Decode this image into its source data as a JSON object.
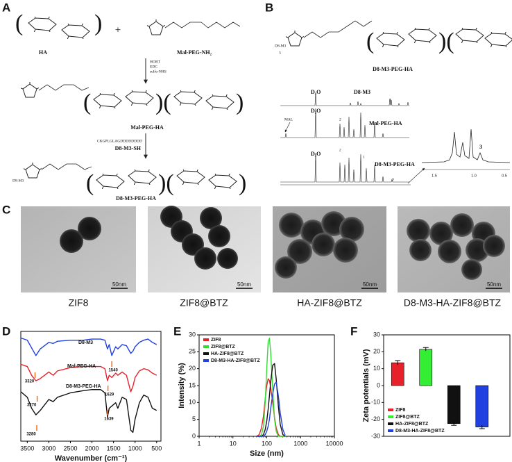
{
  "panel_labels": [
    "A",
    "B",
    "C",
    "D",
    "E",
    "F"
  ],
  "scheme_a": {
    "reactant1": "HA",
    "plus": "+",
    "reactant2": "Mal-PEG-NH₂",
    "reagents": [
      "HOBT",
      "EDC",
      "sulfo-NHS"
    ],
    "intermediate": "Mal-PEG-HA",
    "peptide_sequence": "CKGPLGLAGDDDDDDDD",
    "peptide": "D8-M3-SH",
    "product": "D8-M3-PEG-HA",
    "substituent": "D8-M3"
  },
  "scheme_b": {
    "substituent": "D8-M3",
    "repeat": "3",
    "title": "D8-M3-PEG-HA",
    "spectra": [
      {
        "solvent": "D₂O",
        "name": "D8-M3",
        "peak_labels": [
          "3"
        ]
      },
      {
        "solvent": "D₂O",
        "name": "Mal-PEG-HA",
        "marker": "MAL",
        "peak_labels": [
          "2",
          "1"
        ]
      },
      {
        "solvent": "D₂O",
        "name": "D8-M3-PEG-HA",
        "peak_labels": [
          "2",
          "1",
          "3"
        ]
      }
    ],
    "inset_label": "3",
    "inset_ticks": [
      "1.5",
      "1.0",
      "0.5"
    ]
  },
  "tem": {
    "samples": [
      "ZIF8",
      "ZIF8@BTZ",
      "HA-ZIF8@BTZ",
      "D8-M3-HA-ZIF8@BTZ"
    ],
    "scale_bar": "50nm"
  },
  "chart_data": [
    {
      "type": "line",
      "xlabel": "Wavenumber (cm⁻¹)",
      "xlim": [
        3650,
        400
      ],
      "xticks": [
        3500,
        3000,
        2500,
        2000,
        1500,
        1000,
        500
      ],
      "ylim": [
        0,
        100
      ],
      "x": [
        3650,
        3500,
        3400,
        3300,
        3200,
        3000,
        2900,
        2800,
        2500,
        2200,
        2000,
        1800,
        1700,
        1640,
        1600,
        1540,
        1450,
        1400,
        1300,
        1200,
        1100,
        1050,
        1000,
        900,
        800,
        700,
        600,
        500
      ],
      "series": [
        {
          "name": "D8-M3",
          "color": "#1f3fe0",
          "values": [
            94,
            92,
            85,
            78,
            84,
            90,
            89,
            91,
            92,
            92,
            93,
            93,
            92,
            84,
            88,
            78,
            86,
            84,
            88,
            87,
            80,
            82,
            86,
            90,
            92,
            93,
            90,
            88
          ]
        },
        {
          "name": "Mal-PEG-HA",
          "color": "#e8202a",
          "values": [
            70,
            68,
            60,
            55,
            57,
            63,
            60,
            64,
            67,
            68,
            68,
            68,
            66,
            55,
            60,
            58,
            62,
            60,
            63,
            60,
            45,
            50,
            58,
            64,
            66,
            65,
            62,
            60
          ]
        },
        {
          "name": "D8-M3-PEG-HA",
          "color": "#111111",
          "values": [
            45,
            40,
            30,
            24,
            28,
            38,
            36,
            40,
            44,
            46,
            47,
            47,
            44,
            22,
            30,
            32,
            35,
            30,
            40,
            38,
            10,
            8,
            20,
            35,
            42,
            40,
            30,
            28
          ]
        }
      ],
      "annotations": [
        3320,
        1540,
        3270,
        1629,
        3280,
        1639
      ],
      "annotation_color": "#f07020"
    },
    {
      "type": "line",
      "xlabel": "Size (nm)",
      "ylabel": "Intensity (%)",
      "xscale": "log",
      "xlim": [
        1,
        10000
      ],
      "xticks": [
        1,
        10,
        100,
        1000,
        10000
      ],
      "ylim": [
        0,
        30
      ],
      "yticks": [
        0,
        5,
        10,
        15,
        20,
        25,
        30
      ],
      "legend": "upper left",
      "x": [
        50,
        60,
        70,
        80,
        90,
        100,
        110,
        120,
        130,
        150,
        170,
        190,
        220,
        250,
        300,
        350
      ],
      "series": [
        {
          "name": "ZIF8",
          "color": "#e8202a",
          "values": [
            0,
            0.5,
            2.5,
            6,
            11,
            15,
            17,
            16.5,
            14.5,
            10,
            5.5,
            2.5,
            0.5,
            0,
            0,
            0
          ]
        },
        {
          "name": "ZIF8@BTZ",
          "color": "#33dd33",
          "values": [
            0,
            0,
            0.5,
            3,
            10,
            20,
            28,
            29,
            25,
            14,
            5,
            1.5,
            0,
            0,
            0,
            0
          ]
        },
        {
          "name": "HA-ZIF8@BTZ",
          "color": "#111111",
          "values": [
            0,
            0,
            0,
            0.5,
            2,
            4.5,
            8,
            12,
            16,
            21,
            21.5,
            17,
            9,
            3.5,
            0.5,
            0
          ]
        },
        {
          "name": "D8-M3-HA-ZIF8@BTZ",
          "color": "#2040e0",
          "values": [
            0,
            0,
            0,
            0,
            0.5,
            1.5,
            3,
            5,
            8,
            12.5,
            15.5,
            16,
            12,
            7,
            2,
            0.3
          ]
        }
      ]
    },
    {
      "type": "bar",
      "ylabel": "Zeta potentials (mV)",
      "ylim": [
        -30,
        30
      ],
      "yticks": [
        -30,
        -20,
        -10,
        0,
        10,
        20,
        30
      ],
      "legend": "lower left",
      "categories": [
        "ZIF8",
        "ZIF8@BTZ",
        "HA-ZIF8@BTZ",
        "D8-M3-HA-ZIF8@BTZ"
      ],
      "values": [
        13.5,
        21.5,
        -22.5,
        -24.5
      ],
      "errors": [
        1.3,
        1,
        1,
        1
      ],
      "colors": [
        "#e8202a",
        "#33ee33",
        "#111111",
        "#2040e0"
      ]
    }
  ]
}
